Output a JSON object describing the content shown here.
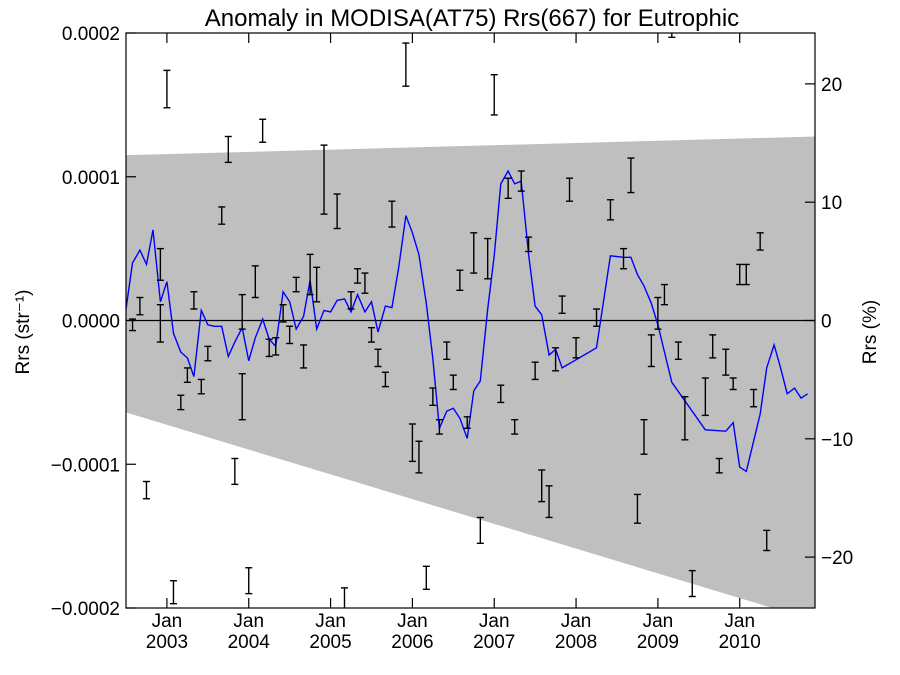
{
  "chart_data": {
    "type": "line",
    "title": "Anomaly in MODISA(AT75) Rrs(667) for Eutrophic",
    "ylabel": "Rrs (str⁻¹)",
    "ylabel_right": "Rrs (%)",
    "xlim": [
      2002.5,
      2010.92
    ],
    "ylim": [
      -0.0002,
      0.0002
    ],
    "ylim_right": [
      -24.3,
      24.3
    ],
    "yticks": [
      {
        "value": 0.0002,
        "label": "0.0002"
      },
      {
        "value": 0.0001,
        "label": "0.0001"
      },
      {
        "value": 0.0,
        "label": "0.0000"
      },
      {
        "value": -0.0001,
        "label": "−0.0001"
      },
      {
        "value": -0.0002,
        "label": "−0.0002"
      }
    ],
    "yticks_right": [
      {
        "value": 20,
        "label": "20"
      },
      {
        "value": 10,
        "label": "10"
      },
      {
        "value": 0,
        "label": "0"
      },
      {
        "value": -10,
        "label": "−10"
      },
      {
        "value": -20,
        "label": "−20"
      }
    ],
    "xticks": [
      {
        "value": 2003,
        "month": "Jan",
        "year": "2003"
      },
      {
        "value": 2004,
        "month": "Jan",
        "year": "2004"
      },
      {
        "value": 2005,
        "month": "Jan",
        "year": "2005"
      },
      {
        "value": 2006,
        "month": "Jan",
        "year": "2006"
      },
      {
        "value": 2007,
        "month": "Jan",
        "year": "2007"
      },
      {
        "value": 2008,
        "month": "Jan",
        "year": "2008"
      },
      {
        "value": 2009,
        "month": "Jan",
        "year": "2009"
      },
      {
        "value": 2010,
        "month": "Jan",
        "year": "2010"
      }
    ],
    "band": {
      "upper": [
        [
          2002.5,
          0.000115
        ],
        [
          2010.92,
          0.000128
        ]
      ],
      "lower": [
        [
          2002.5,
          -6.4e-05
        ],
        [
          2010.92,
          -0.000209
        ]
      ],
      "color": "#bfbfbf"
    },
    "zero_line": 0.0,
    "line": {
      "color": "#0000ff",
      "points": [
        [
          2002.5,
          8e-06
        ],
        [
          2002.58,
          4e-05
        ],
        [
          2002.67,
          4.9e-05
        ],
        [
          2002.75,
          3.9e-05
        ],
        [
          2002.83,
          6.3e-05
        ],
        [
          2002.92,
          1.3e-05
        ],
        [
          2003.0,
          2.7e-05
        ],
        [
          2003.08,
          -9e-06
        ],
        [
          2003.17,
          -2.2e-05
        ],
        [
          2003.25,
          -2.6e-05
        ],
        [
          2003.33,
          -3.9e-05
        ],
        [
          2003.42,
          7e-06
        ],
        [
          2003.5,
          -3e-06
        ],
        [
          2003.58,
          -4e-06
        ],
        [
          2003.67,
          -4e-06
        ],
        [
          2003.75,
          -2.5e-05
        ],
        [
          2003.83,
          -1.5e-05
        ],
        [
          2003.92,
          -5e-06
        ],
        [
          2004.0,
          -2.8e-05
        ],
        [
          2004.08,
          -1.2e-05
        ],
        [
          2004.17,
          1e-06
        ],
        [
          2004.25,
          -1.3e-05
        ],
        [
          2004.33,
          -1.8e-05
        ],
        [
          2004.42,
          2e-05
        ],
        [
          2004.5,
          1.3e-05
        ],
        [
          2004.58,
          -6e-06
        ],
        [
          2004.67,
          3e-06
        ],
        [
          2004.75,
          2.8e-05
        ],
        [
          2004.83,
          -6e-06
        ],
        [
          2004.92,
          7e-06
        ],
        [
          2005.0,
          6e-06
        ],
        [
          2005.08,
          1.4e-05
        ],
        [
          2005.17,
          1.5e-05
        ],
        [
          2005.25,
          6e-06
        ],
        [
          2005.33,
          1.8e-05
        ],
        [
          2005.42,
          6e-06
        ],
        [
          2005.5,
          1.3e-05
        ],
        [
          2005.58,
          -8e-06
        ],
        [
          2005.67,
          1e-05
        ],
        [
          2005.75,
          9e-06
        ],
        [
          2005.83,
          3.6e-05
        ],
        [
          2005.92,
          7.3e-05
        ],
        [
          2006.0,
          6.1e-05
        ],
        [
          2006.08,
          4.6e-05
        ],
        [
          2006.17,
          1.2e-05
        ],
        [
          2006.25,
          -2.7e-05
        ],
        [
          2006.33,
          -7.5e-05
        ],
        [
          2006.42,
          -6.3e-05
        ],
        [
          2006.5,
          -6.1e-05
        ],
        [
          2006.58,
          -6.8e-05
        ],
        [
          2006.67,
          -8.2e-05
        ],
        [
          2006.75,
          -4.9e-05
        ],
        [
          2006.83,
          -4.2e-05
        ],
        [
          2006.92,
          8e-06
        ],
        [
          2007.0,
          4.5e-05
        ],
        [
          2007.08,
          9.5e-05
        ],
        [
          2007.17,
          0.000104
        ],
        [
          2007.25,
          9.5e-05
        ],
        [
          2007.33,
          9.7e-05
        ],
        [
          2007.42,
          4.6e-05
        ],
        [
          2007.5,
          1e-05
        ],
        [
          2007.58,
          4e-06
        ],
        [
          2007.67,
          -2.4e-05
        ],
        [
          2007.75,
          -2e-05
        ],
        [
          2007.83,
          -3.3e-05
        ],
        [
          2008.25,
          -1.9e-05
        ],
        [
          2008.42,
          4.5e-05
        ],
        [
          2008.58,
          4.4e-05
        ],
        [
          2008.67,
          4.4e-05
        ],
        [
          2008.75,
          3.2e-05
        ],
        [
          2008.83,
          2.4e-05
        ],
        [
          2008.92,
          1.2e-05
        ],
        [
          2009.0,
          -3e-06
        ],
        [
          2009.17,
          -4.3e-05
        ],
        [
          2009.58,
          -7.6e-05
        ],
        [
          2009.83,
          -7.7e-05
        ],
        [
          2009.92,
          -7.1e-05
        ],
        [
          2010.0,
          -0.000102
        ],
        [
          2010.08,
          -0.000105
        ],
        [
          2010.17,
          -8.4e-05
        ],
        [
          2010.25,
          -6.5e-05
        ],
        [
          2010.33,
          -3.3e-05
        ],
        [
          2010.42,
          -1.7e-05
        ],
        [
          2010.5,
          -3.3e-05
        ],
        [
          2010.58,
          -5.1e-05
        ],
        [
          2010.67,
          -4.7e-05
        ],
        [
          2010.75,
          -5.4e-05
        ],
        [
          2010.83,
          -5.1e-05
        ]
      ]
    },
    "errorbars": {
      "color": "#000000",
      "points": [
        [
          2002.58,
          -3e-06,
          4e-06
        ],
        [
          2002.67,
          1e-05,
          6e-06
        ],
        [
          2002.75,
          -0.000118,
          6e-06
        ],
        [
          2002.92,
          3.9e-05,
          1.1e-05
        ],
        [
          2002.92,
          -2e-06,
          1.3e-05
        ],
        [
          2003.0,
          0.000161,
          1.3e-05
        ],
        [
          2003.08,
          -0.000189,
          8e-06
        ],
        [
          2003.17,
          -5.7e-05,
          5e-06
        ],
        [
          2003.25,
          -3.8e-05,
          5e-06
        ],
        [
          2003.33,
          1.4e-05,
          6e-06
        ],
        [
          2003.42,
          -4.6e-05,
          5e-06
        ],
        [
          2003.5,
          -2.3e-05,
          5e-06
        ],
        [
          2003.67,
          7.3e-05,
          6e-06
        ],
        [
          2003.75,
          0.000119,
          9e-06
        ],
        [
          2003.83,
          -0.000105,
          9e-06
        ],
        [
          2003.92,
          -5.3e-05,
          1.6e-05
        ],
        [
          2003.92,
          6e-06,
          1.2e-05
        ],
        [
          2004.0,
          -0.000181,
          9e-06
        ],
        [
          2004.08,
          2.7e-05,
          1.1e-05
        ],
        [
          2004.17,
          0.000132,
          8e-06
        ],
        [
          2004.25,
          -1.9e-05,
          6e-06
        ],
        [
          2004.33,
          -1.8e-05,
          6e-06
        ],
        [
          2004.42,
          5e-06,
          6e-06
        ],
        [
          2004.5,
          -1e-05,
          6e-06
        ],
        [
          2004.58,
          2.5e-05,
          5e-06
        ],
        [
          2004.67,
          -2.5e-05,
          8e-06
        ],
        [
          2004.75,
          3.2e-05,
          1.4e-05
        ],
        [
          2004.83,
          2.5e-05,
          1.2e-05
        ],
        [
          2004.92,
          9.8e-05,
          2.4e-05
        ],
        [
          2005.08,
          7.6e-05,
          1.2e-05
        ],
        [
          2005.17,
          -0.000195,
          9e-06
        ],
        [
          2005.25,
          1.4e-05,
          6e-06
        ],
        [
          2005.33,
          3.1e-05,
          5e-06
        ],
        [
          2005.42,
          2.6e-05,
          7e-06
        ],
        [
          2005.5,
          -1e-05,
          5e-06
        ],
        [
          2005.58,
          -2.6e-05,
          6e-06
        ],
        [
          2005.67,
          -4.1e-05,
          5e-06
        ],
        [
          2005.75,
          7.4e-05,
          9e-06
        ],
        [
          2005.92,
          0.000178,
          1.5e-05
        ],
        [
          2006.0,
          -8.5e-05,
          1.3e-05
        ],
        [
          2006.08,
          -9.5e-05,
          1.1e-05
        ],
        [
          2006.17,
          -0.000179,
          8e-06
        ],
        [
          2006.25,
          -5.3e-05,
          6e-06
        ],
        [
          2006.33,
          -7.4e-05,
          5e-06
        ],
        [
          2006.42,
          -2.1e-05,
          6e-06
        ],
        [
          2006.5,
          -4.3e-05,
          5e-06
        ],
        [
          2006.58,
          2.8e-05,
          7e-06
        ],
        [
          2006.67,
          -7.1e-05,
          4e-06
        ],
        [
          2006.75,
          4.7e-05,
          1.4e-05
        ],
        [
          2006.83,
          -0.000146,
          9e-06
        ],
        [
          2006.92,
          4.3e-05,
          1.4e-05
        ],
        [
          2007.0,
          0.000157,
          1.4e-05
        ],
        [
          2007.08,
          -5.1e-05,
          6e-06
        ],
        [
          2007.17,
          9.2e-05,
          7e-06
        ],
        [
          2007.25,
          -7.4e-05,
          5e-06
        ],
        [
          2007.33,
          9.7e-05,
          7e-06
        ],
        [
          2007.42,
          5.3e-05,
          5e-06
        ],
        [
          2007.5,
          -3.5e-05,
          6e-06
        ],
        [
          2007.58,
          -0.000115,
          1.1e-05
        ],
        [
          2007.67,
          -0.000126,
          1.1e-05
        ],
        [
          2007.75,
          -2.7e-05,
          8e-06
        ],
        [
          2007.83,
          1.1e-05,
          6e-06
        ],
        [
          2007.92,
          9.1e-05,
          8e-06
        ],
        [
          2008.0,
          -1.9e-05,
          7e-06
        ],
        [
          2008.25,
          2e-06,
          6e-06
        ],
        [
          2008.42,
          7.7e-05,
          7e-06
        ],
        [
          2008.58,
          4.3e-05,
          7e-06
        ],
        [
          2008.67,
          0.000101,
          1.2e-05
        ],
        [
          2008.75,
          -0.000131,
          1e-05
        ],
        [
          2008.83,
          -8.1e-05,
          1.2e-05
        ],
        [
          2008.92,
          -2.1e-05,
          1.1e-05
        ],
        [
          2009.0,
          5e-06,
          1.1e-05
        ],
        [
          2009.08,
          1.8e-05,
          7e-06
        ],
        [
          2009.17,
          0.000201,
          4e-06
        ],
        [
          2009.25,
          -2.1e-05,
          6e-06
        ],
        [
          2009.33,
          -6.8e-05,
          1.5e-05
        ],
        [
          2009.42,
          -0.000183,
          9e-06
        ],
        [
          2009.58,
          -5.3e-05,
          1.3e-05
        ],
        [
          2009.67,
          -1.8e-05,
          8e-06
        ],
        [
          2009.75,
          -0.000101,
          5e-06
        ],
        [
          2009.83,
          -2.9e-05,
          9e-06
        ],
        [
          2009.92,
          -4.4e-05,
          4e-06
        ],
        [
          2010.0,
          3.2e-05,
          7e-06
        ],
        [
          2010.08,
          3.2e-05,
          7e-06
        ],
        [
          2010.17,
          -5.4e-05,
          6e-06
        ],
        [
          2010.25,
          5.5e-05,
          6e-06
        ],
        [
          2010.33,
          -0.000153,
          7e-06
        ]
      ]
    }
  }
}
